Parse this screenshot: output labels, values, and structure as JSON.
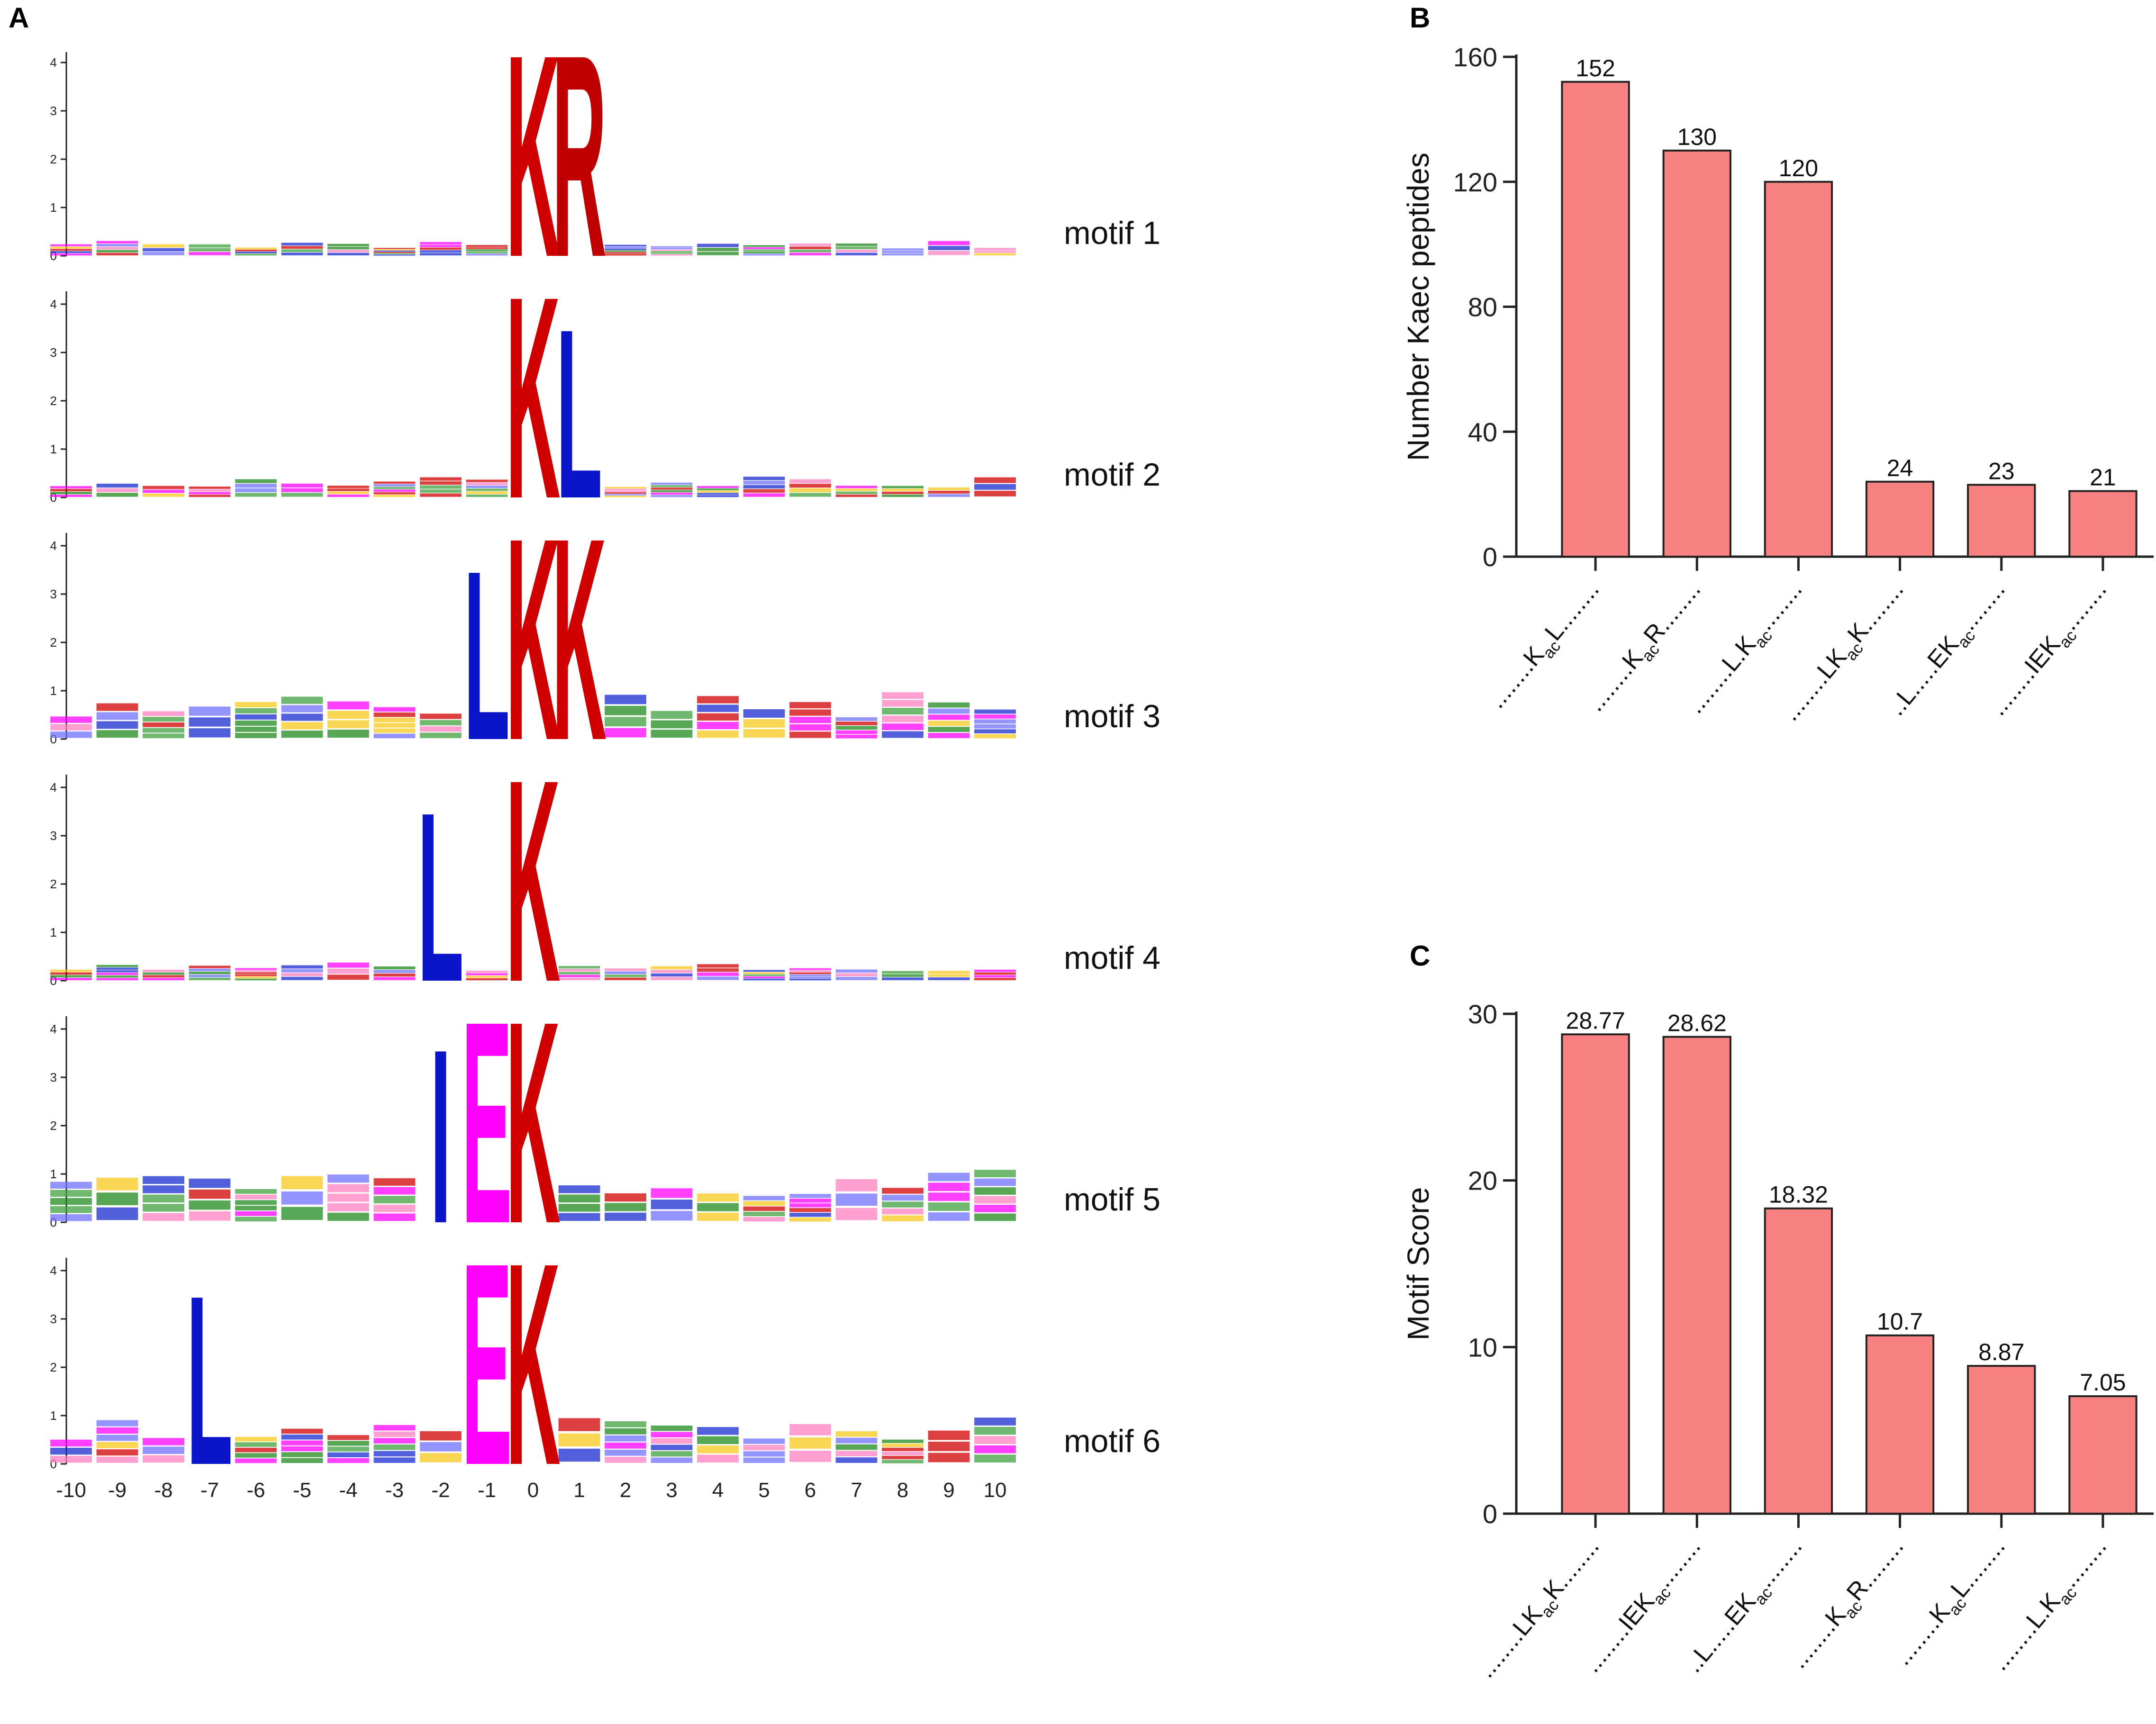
{
  "colors": {
    "K": "#d00000",
    "R": "#c00000",
    "L": "#0a14c8",
    "I": "#0a14c8",
    "E": "#ff00ff",
    "Q": "#1f8a1f",
    "A": "#1a2bd0",
    "S": "#f7c81a",
    "bar_fill": "#f78080",
    "bar_stroke": "#222222",
    "axis": "#222222"
  },
  "panel_a": {
    "label": "A",
    "y_ticks": [
      "0",
      "1",
      "2",
      "3",
      "4"
    ],
    "x_ticks": [
      "-10",
      "-9",
      "-8",
      "-7",
      "-6",
      "-5",
      "-4",
      "-3",
      "-2",
      "-1",
      "0",
      "1",
      "2",
      "3",
      "4",
      "5",
      "6",
      "7",
      "8",
      "9",
      "10"
    ],
    "motifs": [
      {
        "name": "motif 1",
        "letters": [
          {
            "pos": "0",
            "aa": "K",
            "bits": 4.3
          },
          {
            "pos": "1",
            "aa": "R",
            "bits": 4.3
          }
        ],
        "noise_height": 0.3
      },
      {
        "name": "motif 2",
        "letters": [
          {
            "pos": "0",
            "aa": "K",
            "bits": 4.3
          },
          {
            "pos": "1",
            "aa": "L",
            "bits": 3.6
          }
        ],
        "noise_height": 0.4
      },
      {
        "name": "motif 3",
        "letters": [
          {
            "pos": "-1",
            "aa": "L",
            "bits": 3.6
          },
          {
            "pos": "0",
            "aa": "K",
            "bits": 4.3
          },
          {
            "pos": "1",
            "aa": "K",
            "bits": 4.3
          }
        ],
        "noise_height": 0.9
      },
      {
        "name": "motif 4",
        "letters": [
          {
            "pos": "-2",
            "aa": "L",
            "bits": 3.6
          },
          {
            "pos": "0",
            "aa": "K",
            "bits": 4.3
          }
        ],
        "noise_height": 0.4
      },
      {
        "name": "motif 5",
        "letters": [
          {
            "pos": "-2",
            "aa": "I",
            "bits": 3.7
          },
          {
            "pos": "-1",
            "aa": "E",
            "bits": 4.3
          },
          {
            "pos": "0",
            "aa": "K",
            "bits": 4.3
          }
        ],
        "noise_height": 1.0
      },
      {
        "name": "motif 6",
        "letters": [
          {
            "pos": "-7",
            "aa": "L",
            "bits": 3.6
          },
          {
            "pos": "-1",
            "aa": "E",
            "bits": 4.3
          },
          {
            "pos": "0",
            "aa": "K",
            "bits": 4.3
          }
        ],
        "noise_height": 0.9
      }
    ]
  },
  "chart_data": [
    {
      "panel": "B",
      "type": "bar",
      "ylabel": "Number Kaec peptides",
      "ylim": [
        0,
        160
      ],
      "y_ticks": [
        "0",
        "40",
        "80",
        "120",
        "160"
      ],
      "categories": [
        {
          "pre": "........K",
          "sub": "ac",
          "post": "L........"
        },
        {
          "pre": "........K",
          "sub": "ac",
          "post": "R........"
        },
        {
          "pre": "........L.K",
          "sub": "ac",
          "post": "........"
        },
        {
          "pre": "........LK",
          "sub": "ac",
          "post": "K........"
        },
        {
          "pre": "..L.....EK",
          "sub": "ac",
          "post": "........"
        },
        {
          "pre": "........IEK",
          "sub": "ac",
          "post": "........"
        }
      ],
      "values": [
        152,
        130,
        120,
        24,
        23,
        21
      ],
      "value_labels": [
        "152",
        "130",
        "120",
        "24",
        "23",
        "21"
      ]
    },
    {
      "panel": "C",
      "type": "bar",
      "ylabel": "Motif Score",
      "ylim": [
        0,
        30
      ],
      "y_ticks": [
        "0",
        "10",
        "20",
        "30"
      ],
      "categories": [
        {
          "pre": "........LK",
          "sub": "ac",
          "post": "K........"
        },
        {
          "pre": "........IEK",
          "sub": "ac",
          "post": "........"
        },
        {
          "pre": "..L.....EK",
          "sub": "ac",
          "post": "........"
        },
        {
          "pre": "........K",
          "sub": "ac",
          "post": "R........"
        },
        {
          "pre": "........K",
          "sub": "ac",
          "post": "L........"
        },
        {
          "pre": "........L.K",
          "sub": "ac",
          "post": "........"
        }
      ],
      "values": [
        28.77,
        28.62,
        18.32,
        10.7,
        8.87,
        7.05
      ],
      "value_labels": [
        "28.77",
        "28.62",
        "18.32",
        "10.7",
        "8.87",
        "7.05"
      ]
    }
  ]
}
